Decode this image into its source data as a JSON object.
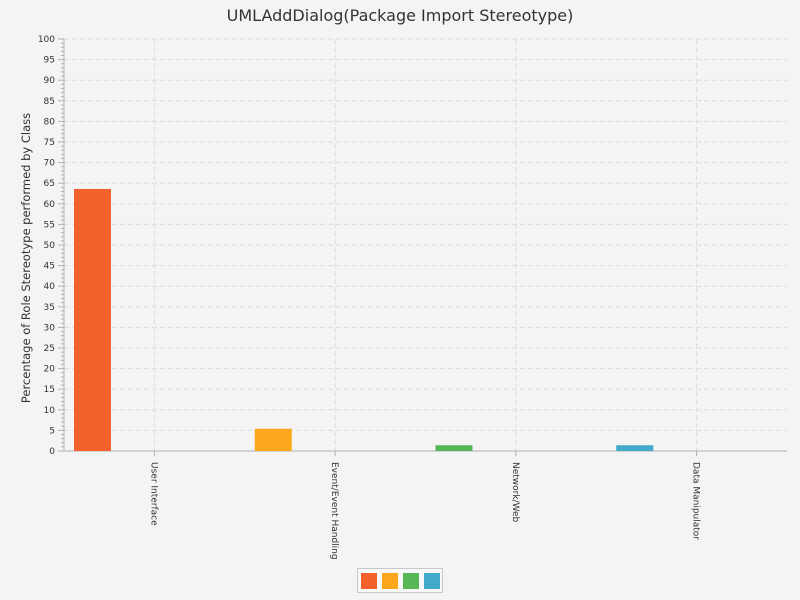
{
  "chart_data": {
    "type": "bar",
    "title": "UMLAddDialog(Package Import Stereotype)",
    "xlabel": "",
    "ylabel": "Percentage of Role Stereotype performed by Class",
    "ylim": [
      0,
      100
    ],
    "ytick_step": 5,
    "grid": true,
    "categories": [
      "User Interface",
      "Event/Event Handling",
      "Network/Web",
      "Data Manipulator"
    ],
    "values": [
      63.6,
      5.4,
      1.4,
      1.4
    ],
    "colors": [
      "#f3622d",
      "#fba71b",
      "#57b757",
      "#41a9c9"
    ],
    "legend": {
      "position": "bottom"
    }
  }
}
